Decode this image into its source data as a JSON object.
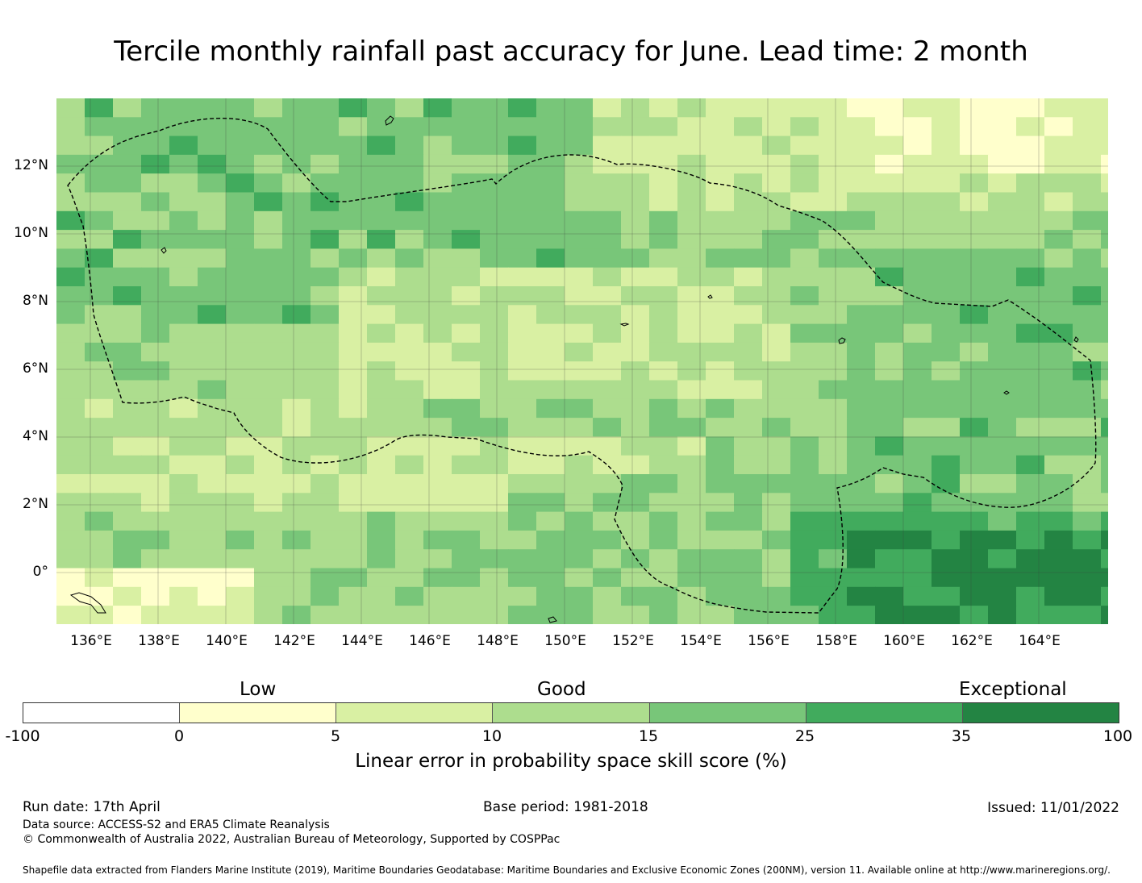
{
  "title": "Tercile monthly rainfall past accuracy for June. Lead time: 2 month",
  "map": {
    "latitude_labels": [
      "12°N",
      "10°N",
      "8°N",
      "6°N",
      "4°N",
      "2°N",
      "0°"
    ],
    "longitude_labels": [
      "136°E",
      "138°E",
      "140°E",
      "142°E",
      "144°E",
      "146°E",
      "148°E",
      "150°E",
      "152°E",
      "154°E",
      "156°E",
      "158°E",
      "160°E",
      "162°E",
      "164°E"
    ],
    "grid_lines": true,
    "eez_boundary": "dashed black line"
  },
  "legend": {
    "category_labels": [
      "Low",
      "Good",
      "Exceptional"
    ],
    "tick_labels": [
      "-100",
      "0",
      "5",
      "10",
      "15",
      "25",
      "35",
      "100"
    ],
    "colors": [
      "#ffffff",
      "#ffffcc",
      "#d9f0a3",
      "#addd8e",
      "#78c679",
      "#41ab5d",
      "#238443"
    ],
    "axis_label": "Linear error in probability space skill score (%)"
  },
  "footer": {
    "run_date": "Run date: 17th April",
    "base_period": "Base period: 1981-2018",
    "issued": "Issued: 11/01/2022",
    "data_source": "Data source: ACCESS-S2 and ERA5 Climate Reanalysis",
    "copyright": "© Commonwealth of Australia 2022, Australian Bureau of Meteorology, Supported by COSPPac",
    "shapefile": "Shapefile data extracted from Flanders Marine Institute (2019), Maritime Boundaries Geodatabase: Maritime Boundaries and Exclusive Economic Zones (200NM), version 11. Available online at http://www.marineregions.org/."
  }
}
